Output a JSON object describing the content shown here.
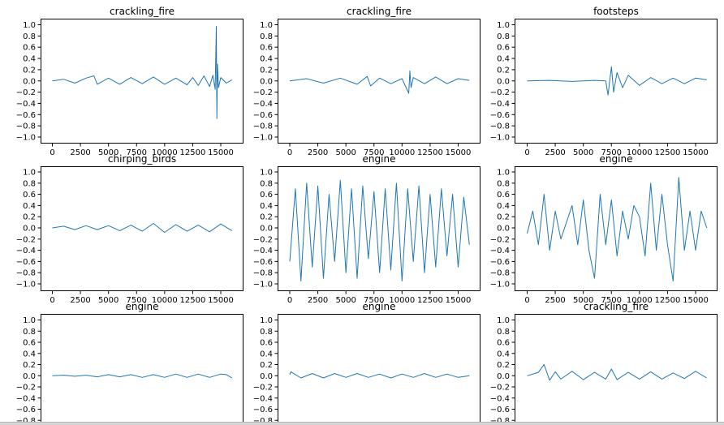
{
  "figure": {
    "series_color": "#1f77b4",
    "panels_shown": 9
  },
  "chart_data": [
    {
      "type": "line",
      "title": "crackling_fire",
      "xlabel": "",
      "ylabel": "",
      "xlim": [
        0,
        16000
      ],
      "ylim": [
        -1.0,
        1.0
      ],
      "xticks": [
        "0",
        "2500",
        "5000",
        "7500",
        "10000",
        "12500",
        "15000"
      ],
      "yticks": [
        "1.0",
        "0.8",
        "0.6",
        "0.4",
        "0.2",
        "0.0",
        "−0.2",
        "−0.4",
        "−0.6",
        "−0.8",
        "−1.0"
      ],
      "series": [
        {
          "x": [
            0,
            1000,
            2000,
            3000,
            3700,
            4000,
            5000,
            6000,
            7000,
            8000,
            9000,
            10000,
            11000,
            12000,
            12500,
            13000,
            13500,
            14000,
            14300,
            14500,
            14600,
            14650,
            14700,
            14800,
            15000,
            15500,
            16000
          ],
          "y": [
            0.0,
            0.03,
            -0.04,
            0.05,
            0.09,
            -0.06,
            0.05,
            -0.06,
            0.06,
            -0.05,
            0.07,
            -0.06,
            0.05,
            -0.07,
            0.06,
            -0.08,
            0.09,
            -0.1,
            0.1,
            -0.15,
            0.97,
            -0.67,
            0.3,
            -0.12,
            0.06,
            -0.04,
            0.02
          ]
        }
      ]
    },
    {
      "type": "line",
      "title": "crackling_fire",
      "xlabel": "",
      "ylabel": "",
      "xlim": [
        0,
        16000
      ],
      "ylim": [
        -1.0,
        1.0
      ],
      "xticks": [
        "0",
        "2500",
        "5000",
        "7500",
        "10000",
        "12500",
        "15000"
      ],
      "yticks": [
        "1.0",
        "0.8",
        "0.6",
        "0.4",
        "0.2",
        "0.0",
        "−0.2",
        "−0.4",
        "−0.6",
        "−0.8",
        "−1.0"
      ],
      "series": [
        {
          "x": [
            0,
            1500,
            3000,
            4500,
            6000,
            6900,
            7200,
            8000,
            9000,
            10000,
            10600,
            10700,
            10800,
            11000,
            12000,
            13000,
            14000,
            15000,
            16000
          ],
          "y": [
            0.0,
            0.04,
            -0.04,
            0.05,
            -0.06,
            0.08,
            -0.09,
            0.05,
            -0.05,
            0.04,
            -0.22,
            0.18,
            -0.12,
            0.06,
            -0.05,
            0.07,
            -0.05,
            0.04,
            0.01
          ]
        }
      ]
    },
    {
      "type": "line",
      "title": "footsteps",
      "xlabel": "",
      "ylabel": "",
      "xlim": [
        0,
        16000
      ],
      "ylim": [
        -1.0,
        1.0
      ],
      "xticks": [
        "0",
        "2500",
        "5000",
        "7500",
        "10000",
        "12500",
        "15000"
      ],
      "yticks": [
        "1.0",
        "0.8",
        "0.6",
        "0.4",
        "0.2",
        "0.0",
        "−0.2",
        "−0.4",
        "−0.6",
        "−0.8",
        "−1.0"
      ],
      "series": [
        {
          "x": [
            0,
            2000,
            4000,
            6000,
            7000,
            7200,
            7500,
            7700,
            8000,
            8500,
            9000,
            10000,
            11000,
            12000,
            13000,
            14000,
            15000,
            16000
          ],
          "y": [
            0.0,
            0.01,
            -0.01,
            0.01,
            0.0,
            -0.25,
            0.25,
            -0.2,
            0.15,
            -0.12,
            0.1,
            -0.08,
            0.06,
            -0.05,
            0.05,
            -0.05,
            0.05,
            0.02
          ]
        }
      ]
    },
    {
      "type": "line",
      "title": "chirping_birds",
      "xlabel": "",
      "ylabel": "",
      "xlim": [
        0,
        16000
      ],
      "ylim": [
        -1.0,
        1.0
      ],
      "xticks": [
        "0",
        "2500",
        "5000",
        "7500",
        "10000",
        "12500",
        "15000"
      ],
      "yticks": [
        "1.0",
        "0.8",
        "0.6",
        "0.4",
        "0.2",
        "0.0",
        "−0.2",
        "−0.4",
        "−0.6",
        "−0.8",
        "−1.0"
      ],
      "series": [
        {
          "x": [
            0,
            1000,
            2000,
            3000,
            4000,
            5000,
            6000,
            7000,
            8000,
            9000,
            10000,
            11000,
            12000,
            13000,
            14000,
            15000,
            16000
          ],
          "y": [
            0.0,
            0.03,
            -0.03,
            0.04,
            -0.03,
            0.04,
            -0.05,
            0.05,
            -0.06,
            0.08,
            -0.08,
            0.06,
            -0.06,
            0.05,
            -0.07,
            0.07,
            -0.05
          ]
        }
      ]
    },
    {
      "type": "line",
      "title": "engine",
      "xlabel": "",
      "ylabel": "",
      "xlim": [
        0,
        16000
      ],
      "ylim": [
        -1.0,
        1.0
      ],
      "xticks": [
        "0",
        "2500",
        "5000",
        "7500",
        "10000",
        "12500",
        "15000"
      ],
      "yticks": [
        "1.0",
        "0.8",
        "0.6",
        "0.4",
        "0.2",
        "0.0",
        "−0.2",
        "−0.4",
        "−0.6",
        "−0.8",
        "−1.0"
      ],
      "series": [
        {
          "x": [
            0,
            500,
            1000,
            1500,
            2000,
            2500,
            3000,
            3500,
            4000,
            4500,
            5000,
            5500,
            6000,
            6500,
            7000,
            7500,
            8000,
            8500,
            9000,
            9500,
            10000,
            10500,
            11000,
            11500,
            12000,
            12500,
            13000,
            13500,
            14000,
            14500,
            15000,
            15500,
            16000
          ],
          "y": [
            -0.6,
            0.7,
            -0.95,
            0.8,
            -0.7,
            0.75,
            -0.9,
            0.6,
            -0.6,
            0.85,
            -0.8,
            0.7,
            -0.9,
            0.75,
            -0.55,
            0.65,
            -0.8,
            0.7,
            -0.75,
            0.8,
            -0.95,
            0.7,
            -0.6,
            0.75,
            -0.8,
            0.6,
            -0.7,
            0.7,
            -0.5,
            0.6,
            -0.7,
            0.55,
            -0.3
          ]
        }
      ]
    },
    {
      "type": "line",
      "title": "engine",
      "xlabel": "",
      "ylabel": "",
      "xlim": [
        0,
        16000
      ],
      "ylim": [
        -1.0,
        1.0
      ],
      "xticks": [
        "0",
        "2500",
        "5000",
        "7500",
        "10000",
        "12500",
        "15000"
      ],
      "yticks": [
        "1.0",
        "0.8",
        "0.6",
        "0.4",
        "0.2",
        "0.0",
        "−0.2",
        "−0.4",
        "−0.6",
        "−0.8",
        "−1.0"
      ],
      "series": [
        {
          "x": [
            0,
            500,
            1000,
            1500,
            2000,
            2500,
            3000,
            3500,
            4000,
            4500,
            5000,
            5500,
            6000,
            6500,
            7000,
            7500,
            8000,
            8500,
            9000,
            9500,
            10000,
            10500,
            11000,
            11500,
            12000,
            12500,
            13000,
            13500,
            14000,
            14500,
            15000,
            15500,
            16000
          ],
          "y": [
            -0.1,
            0.3,
            -0.3,
            0.6,
            -0.4,
            0.3,
            -0.2,
            0.1,
            0.4,
            -0.3,
            0.5,
            -0.4,
            -0.9,
            0.6,
            -0.3,
            0.5,
            -0.5,
            0.3,
            -0.2,
            0.4,
            0.2,
            -0.5,
            0.8,
            -0.4,
            0.6,
            -0.3,
            -0.95,
            0.9,
            -0.4,
            0.3,
            -0.4,
            0.3,
            0.0
          ]
        }
      ]
    },
    {
      "type": "line",
      "title": "engine",
      "xlabel": "",
      "ylabel": "",
      "xlim": [
        0,
        16000
      ],
      "ylim": [
        -0.8,
        1.0
      ],
      "xticks": [],
      "yticks": [
        "1.0",
        "0.8",
        "0.6",
        "0.4",
        "0.2",
        "0.0",
        "−0.2",
        "−0.4",
        "−0.6",
        "−0.8"
      ],
      "series": [
        {
          "x": [
            0,
            1000,
            2000,
            3000,
            4000,
            5000,
            6000,
            7000,
            8000,
            9000,
            10000,
            11000,
            12000,
            13000,
            14000,
            15000,
            15500,
            16000
          ],
          "y": [
            0.0,
            0.01,
            -0.01,
            0.01,
            -0.02,
            0.02,
            -0.02,
            0.02,
            -0.03,
            0.02,
            -0.03,
            0.03,
            -0.03,
            0.03,
            -0.03,
            0.03,
            0.02,
            -0.04
          ]
        }
      ]
    },
    {
      "type": "line",
      "title": "engine",
      "xlabel": "",
      "ylabel": "",
      "xlim": [
        0,
        16000
      ],
      "ylim": [
        -0.8,
        1.0
      ],
      "xticks": [],
      "yticks": [
        "1.0",
        "0.8",
        "0.6",
        "0.4",
        "0.2",
        "0.0",
        "−0.2",
        "−0.4",
        "−0.6",
        "−0.8"
      ],
      "series": [
        {
          "x": [
            0,
            100,
            1000,
            2000,
            3000,
            4000,
            5000,
            6000,
            7000,
            8000,
            9000,
            10000,
            11000,
            12000,
            13000,
            14000,
            15000,
            16000
          ],
          "y": [
            0.02,
            0.07,
            -0.04,
            0.04,
            -0.04,
            0.04,
            -0.03,
            0.04,
            -0.03,
            0.03,
            -0.04,
            0.03,
            -0.03,
            0.04,
            -0.03,
            0.03,
            -0.03,
            0.0
          ]
        }
      ]
    },
    {
      "type": "line",
      "title": "crackling_fire",
      "xlabel": "",
      "ylabel": "",
      "xlim": [
        0,
        16000
      ],
      "ylim": [
        -0.8,
        1.0
      ],
      "xticks": [],
      "yticks": [
        "1.0",
        "0.8",
        "0.6",
        "0.4",
        "0.2",
        "0.0",
        "−0.2",
        "−0.4",
        "−0.6",
        "−0.8"
      ],
      "series": [
        {
          "x": [
            0,
            1000,
            1500,
            2000,
            2500,
            3000,
            4000,
            5000,
            6000,
            7000,
            7500,
            8000,
            9000,
            10000,
            11000,
            12000,
            13000,
            14000,
            15000,
            16000
          ],
          "y": [
            0.0,
            0.06,
            0.2,
            -0.08,
            0.07,
            -0.06,
            0.08,
            -0.07,
            0.06,
            -0.06,
            0.12,
            -0.07,
            0.06,
            -0.06,
            0.07,
            -0.06,
            0.05,
            -0.05,
            0.08,
            -0.04
          ]
        }
      ]
    }
  ]
}
